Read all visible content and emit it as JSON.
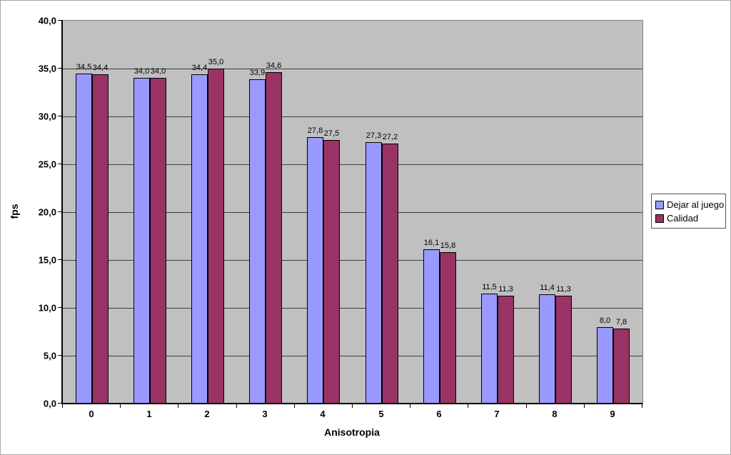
{
  "chart_data": {
    "type": "bar",
    "title": "",
    "xlabel": "Anisotropia",
    "ylabel": "fps",
    "categories": [
      "0",
      "1",
      "2",
      "3",
      "4",
      "5",
      "6",
      "7",
      "8",
      "9"
    ],
    "series": [
      {
        "name": "Dejar al juego",
        "color": "#9999FF",
        "values": [
          34.5,
          34.0,
          34.4,
          33.9,
          27.8,
          27.3,
          16.1,
          11.5,
          11.4,
          8.0
        ],
        "labels": [
          "34,5",
          "34,0",
          "34,4",
          "33,9",
          "27,8",
          "27,3",
          "16,1",
          "11,5",
          "11,4",
          "8,0"
        ]
      },
      {
        "name": "Calidad",
        "color": "#993366",
        "values": [
          34.4,
          34.0,
          35.0,
          34.6,
          27.5,
          27.2,
          15.8,
          11.3,
          11.3,
          7.8
        ],
        "labels": [
          "34,4",
          "34,0",
          "35,0",
          "34,6",
          "27,5",
          "27,2",
          "15,8",
          "11,3",
          "11,3",
          "7,8"
        ]
      }
    ],
    "y_axis": {
      "min": 0,
      "max": 40,
      "step": 5,
      "tick_labels": [
        "0,0",
        "5,0",
        "10,0",
        "15,0",
        "20,0",
        "25,0",
        "30,0",
        "35,0",
        "40,0"
      ]
    },
    "grid": true,
    "legend_position": "right",
    "colors": {
      "plot_background": "#C0C0C0",
      "gridline": "#3F3F3F",
      "bar_border": "#000000",
      "axis": "#000000"
    }
  }
}
